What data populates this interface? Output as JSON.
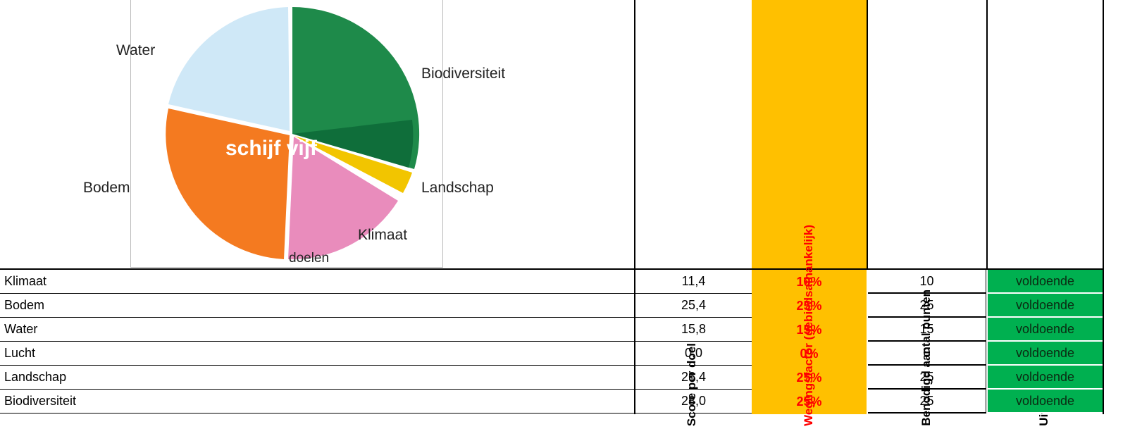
{
  "image": {
    "labels": [
      "Water",
      "Biodiversiteit",
      "Landschap",
      "Klimaat",
      "Bodem"
    ],
    "caption": "doelen"
  },
  "table": {
    "headers": [
      "Score per doel",
      "Wegingsfactor (gebiedsafhankelijk)",
      "Benodigd aantal punten",
      "Uitslag"
    ],
    "rows": [
      [
        "Klimaat",
        "11,4",
        "10%",
        "10",
        "voldoende"
      ],
      [
        "Bodem",
        "25,4",
        "25%",
        "25",
        "voldoende"
      ],
      [
        "Water",
        "15,8",
        "15%",
        "15",
        "voldoende"
      ],
      [
        "Lucht",
        "0,0",
        "0%",
        "0",
        "voldoende"
      ],
      [
        "Landschap",
        "26,4",
        "25%",
        "25",
        "voldoende"
      ],
      [
        "Biodiversiteit",
        "28,0",
        "25%",
        "25",
        "voldoende"
      ]
    ]
  }
}
